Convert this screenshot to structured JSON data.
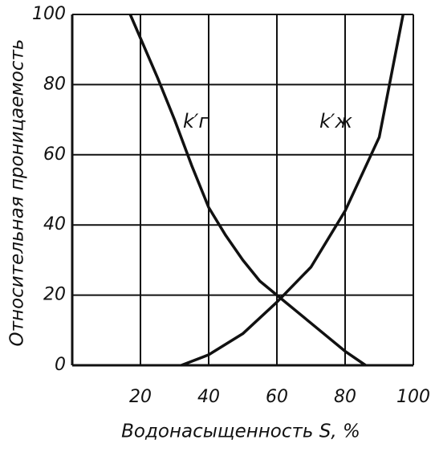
{
  "chart_data": {
    "type": "line",
    "x_label": "Водонасыщенность S, %",
    "y_label": "Относительная проницаемость",
    "xlim": [
      0,
      100
    ],
    "ylim": [
      0,
      100
    ],
    "xticks": [
      20,
      40,
      60,
      80,
      100
    ],
    "yticks": [
      0,
      20,
      40,
      60,
      80,
      100
    ],
    "grid": true,
    "series": [
      {
        "name": "k′г",
        "color": "#111111",
        "x": [
          17,
          25,
          30,
          35,
          40,
          45,
          50,
          55,
          60,
          65,
          70,
          75,
          80,
          86
        ],
        "values": [
          100,
          82,
          70,
          57,
          45,
          37,
          30,
          24,
          20,
          16,
          12,
          8,
          4,
          0
        ]
      },
      {
        "name": "k′ж",
        "color": "#111111",
        "x": [
          32,
          40,
          50,
          60,
          70,
          80,
          90,
          97
        ],
        "values": [
          0,
          3,
          9,
          18,
          28,
          44,
          65,
          100
        ]
      }
    ]
  }
}
